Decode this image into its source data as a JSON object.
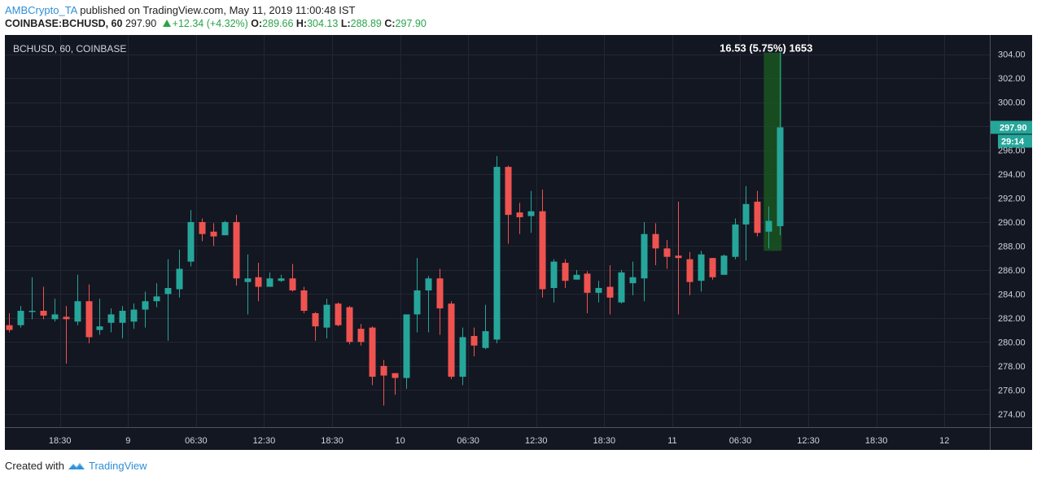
{
  "header": {
    "author": "AMBCrypto_TA",
    "published_text": "published on TradingView.com, May 11, 2019 11:00:48 IST",
    "symbol_line": "COINBASE:BCHUSD, 60",
    "last_price": "297.90",
    "change": "+12.34 (+4.32%)",
    "open_label": "O:",
    "open": "289.66",
    "high_label": "H:",
    "high": "304.13",
    "low_label": "L:",
    "low": "288.89",
    "close_label": "C:",
    "close": "297.90"
  },
  "footer": {
    "created_with": "Created with",
    "brand": "TradingView"
  },
  "colors": {
    "background": "#131722",
    "up": "#26a69a",
    "down": "#ef5350",
    "grid": "#232734",
    "text": "#d1d4dc",
    "highlight": "#1b5e20"
  },
  "chart_data": {
    "type": "candlestick",
    "title": "BCHUSD, 60, COINBASE",
    "ylim": [
      272.9,
      305.6
    ],
    "y_ticks": [
      274,
      276,
      278,
      280,
      282,
      284,
      286,
      288,
      290,
      292,
      294,
      296,
      298,
      300,
      302,
      304
    ],
    "y_tick_labels": [
      "274.00",
      "276.00",
      "278.00",
      "280.00",
      "282.00",
      "284.00",
      "286.00",
      "288.00",
      "290.00",
      "292.00",
      "294.00",
      "296.00",
      "298.00",
      "300.00",
      "302.00",
      "304.00"
    ],
    "x_labels": [
      {
        "label": "18:30",
        "index": 4.5
      },
      {
        "label": "9",
        "index": 10.5
      },
      {
        "label": "06:30",
        "index": 16.5
      },
      {
        "label": "12:30",
        "index": 22.5
      },
      {
        "label": "18:30",
        "index": 28.5
      },
      {
        "label": "10",
        "index": 34.5
      },
      {
        "label": "06:30",
        "index": 40.5
      },
      {
        "label": "12:30",
        "index": 46.5
      },
      {
        "label": "18:30",
        "index": 52.5
      },
      {
        "label": "11",
        "index": 58.5
      },
      {
        "label": "06:30",
        "index": 64.5
      },
      {
        "label": "12:30",
        "index": 70.5
      },
      {
        "label": "18:30",
        "index": 76.5
      },
      {
        "label": "12",
        "index": 82.5
      }
    ],
    "candles": [
      {
        "o": 281.4,
        "h": 282.4,
        "l": 280.8,
        "c": 281.0
      },
      {
        "o": 281.4,
        "h": 283.0,
        "l": 281.2,
        "c": 282.6
      },
      {
        "o": 282.5,
        "h": 285.4,
        "l": 281.9,
        "c": 282.6
      },
      {
        "o": 282.6,
        "h": 284.6,
        "l": 281.9,
        "c": 282.2
      },
      {
        "o": 281.9,
        "h": 283.6,
        "l": 281.7,
        "c": 282.3
      },
      {
        "o": 282.1,
        "h": 283.0,
        "l": 278.2,
        "c": 281.9
      },
      {
        "o": 281.7,
        "h": 285.6,
        "l": 281.4,
        "c": 283.4
      },
      {
        "o": 283.4,
        "h": 284.8,
        "l": 279.9,
        "c": 280.4
      },
      {
        "o": 281.0,
        "h": 283.6,
        "l": 280.6,
        "c": 281.3
      },
      {
        "o": 281.6,
        "h": 282.8,
        "l": 280.8,
        "c": 282.3
      },
      {
        "o": 281.6,
        "h": 283.0,
        "l": 280.3,
        "c": 282.6
      },
      {
        "o": 281.7,
        "h": 283.2,
        "l": 281.1,
        "c": 282.7
      },
      {
        "o": 282.7,
        "h": 284.2,
        "l": 281.2,
        "c": 283.4
      },
      {
        "o": 283.4,
        "h": 284.9,
        "l": 282.9,
        "c": 283.8
      },
      {
        "o": 284.0,
        "h": 286.9,
        "l": 280.1,
        "c": 284.5
      },
      {
        "o": 284.4,
        "h": 287.7,
        "l": 283.7,
        "c": 286.1
      },
      {
        "o": 286.7,
        "h": 291.0,
        "l": 286.3,
        "c": 290.0
      },
      {
        "o": 290.0,
        "h": 290.3,
        "l": 288.4,
        "c": 289.0
      },
      {
        "o": 289.2,
        "h": 289.9,
        "l": 288.0,
        "c": 288.8
      },
      {
        "o": 288.9,
        "h": 290.1,
        "l": 288.9,
        "c": 290.0
      },
      {
        "o": 290.0,
        "h": 290.6,
        "l": 284.7,
        "c": 285.3
      },
      {
        "o": 285.0,
        "h": 287.3,
        "l": 282.3,
        "c": 285.3
      },
      {
        "o": 285.4,
        "h": 286.6,
        "l": 283.4,
        "c": 284.6
      },
      {
        "o": 284.6,
        "h": 285.8,
        "l": 284.6,
        "c": 285.3
      },
      {
        "o": 285.1,
        "h": 285.6,
        "l": 285.0,
        "c": 285.3
      },
      {
        "o": 285.3,
        "h": 286.5,
        "l": 284.2,
        "c": 284.3
      },
      {
        "o": 284.3,
        "h": 284.6,
        "l": 282.4,
        "c": 282.6
      },
      {
        "o": 282.4,
        "h": 282.5,
        "l": 280.1,
        "c": 281.3
      },
      {
        "o": 281.2,
        "h": 283.6,
        "l": 280.3,
        "c": 283.1
      },
      {
        "o": 283.2,
        "h": 283.3,
        "l": 281.3,
        "c": 281.4
      },
      {
        "o": 282.9,
        "h": 283.0,
        "l": 279.8,
        "c": 280.0
      },
      {
        "o": 281.1,
        "h": 281.5,
        "l": 279.7,
        "c": 280.0
      },
      {
        "o": 281.2,
        "h": 281.3,
        "l": 276.4,
        "c": 277.1
      },
      {
        "o": 278.0,
        "h": 278.5,
        "l": 274.7,
        "c": 277.2
      },
      {
        "o": 277.4,
        "h": 277.4,
        "l": 275.6,
        "c": 277.0
      },
      {
        "o": 277.0,
        "h": 282.3,
        "l": 276.1,
        "c": 282.3
      },
      {
        "o": 282.3,
        "h": 287.0,
        "l": 280.8,
        "c": 284.3
      },
      {
        "o": 284.3,
        "h": 285.5,
        "l": 280.8,
        "c": 285.3
      },
      {
        "o": 285.3,
        "h": 286.1,
        "l": 280.6,
        "c": 282.8
      },
      {
        "o": 283.2,
        "h": 283.4,
        "l": 276.9,
        "c": 277.1
      },
      {
        "o": 277.1,
        "h": 281.2,
        "l": 276.4,
        "c": 280.4
      },
      {
        "o": 280.5,
        "h": 281.2,
        "l": 278.8,
        "c": 279.7
      },
      {
        "o": 279.5,
        "h": 283.1,
        "l": 279.4,
        "c": 280.9
      },
      {
        "o": 280.2,
        "h": 295.5,
        "l": 279.9,
        "c": 294.6
      },
      {
        "o": 294.6,
        "h": 294.7,
        "l": 288.2,
        "c": 290.6
      },
      {
        "o": 290.8,
        "h": 291.6,
        "l": 289.0,
        "c": 290.4
      },
      {
        "o": 290.5,
        "h": 292.6,
        "l": 289.1,
        "c": 290.9
      },
      {
        "o": 290.9,
        "h": 292.7,
        "l": 283.7,
        "c": 284.4
      },
      {
        "o": 284.5,
        "h": 286.9,
        "l": 283.3,
        "c": 286.7
      },
      {
        "o": 286.6,
        "h": 286.9,
        "l": 284.5,
        "c": 285.1
      },
      {
        "o": 285.2,
        "h": 286.0,
        "l": 285.2,
        "c": 285.6
      },
      {
        "o": 285.7,
        "h": 285.9,
        "l": 282.4,
        "c": 284.1
      },
      {
        "o": 284.1,
        "h": 285.1,
        "l": 283.3,
        "c": 284.5
      },
      {
        "o": 284.6,
        "h": 286.4,
        "l": 282.3,
        "c": 283.7
      },
      {
        "o": 283.3,
        "h": 286.0,
        "l": 283.2,
        "c": 285.8
      },
      {
        "o": 284.9,
        "h": 286.7,
        "l": 283.9,
        "c": 285.4
      },
      {
        "o": 285.3,
        "h": 290.0,
        "l": 283.4,
        "c": 289.0
      },
      {
        "o": 289.0,
        "h": 289.9,
        "l": 286.4,
        "c": 287.8
      },
      {
        "o": 287.8,
        "h": 288.5,
        "l": 286.1,
        "c": 287.1
      },
      {
        "o": 287.2,
        "h": 291.7,
        "l": 282.3,
        "c": 287.0
      },
      {
        "o": 286.9,
        "h": 287.5,
        "l": 283.9,
        "c": 285.0
      },
      {
        "o": 285.1,
        "h": 287.6,
        "l": 284.2,
        "c": 287.3
      },
      {
        "o": 287.0,
        "h": 287.0,
        "l": 285.2,
        "c": 285.4
      },
      {
        "o": 285.6,
        "h": 287.3,
        "l": 285.6,
        "c": 287.2
      },
      {
        "o": 287.1,
        "h": 290.3,
        "l": 286.9,
        "c": 289.8
      },
      {
        "o": 289.8,
        "h": 293.0,
        "l": 286.8,
        "c": 291.5
      },
      {
        "o": 291.7,
        "h": 292.6,
        "l": 288.8,
        "c": 289.1
      },
      {
        "o": 289.2,
        "h": 291.3,
        "l": 287.8,
        "c": 290.1
      },
      {
        "o": 289.66,
        "h": 304.13,
        "l": 288.89,
        "c": 297.9
      }
    ],
    "annotation": {
      "text": "16.53 (5.75%) 1653",
      "from_price": 287.6,
      "to_price": 304.13,
      "candle_index": 67
    },
    "price_tag": {
      "value": "297.90",
      "countdown": "29:14"
    }
  }
}
